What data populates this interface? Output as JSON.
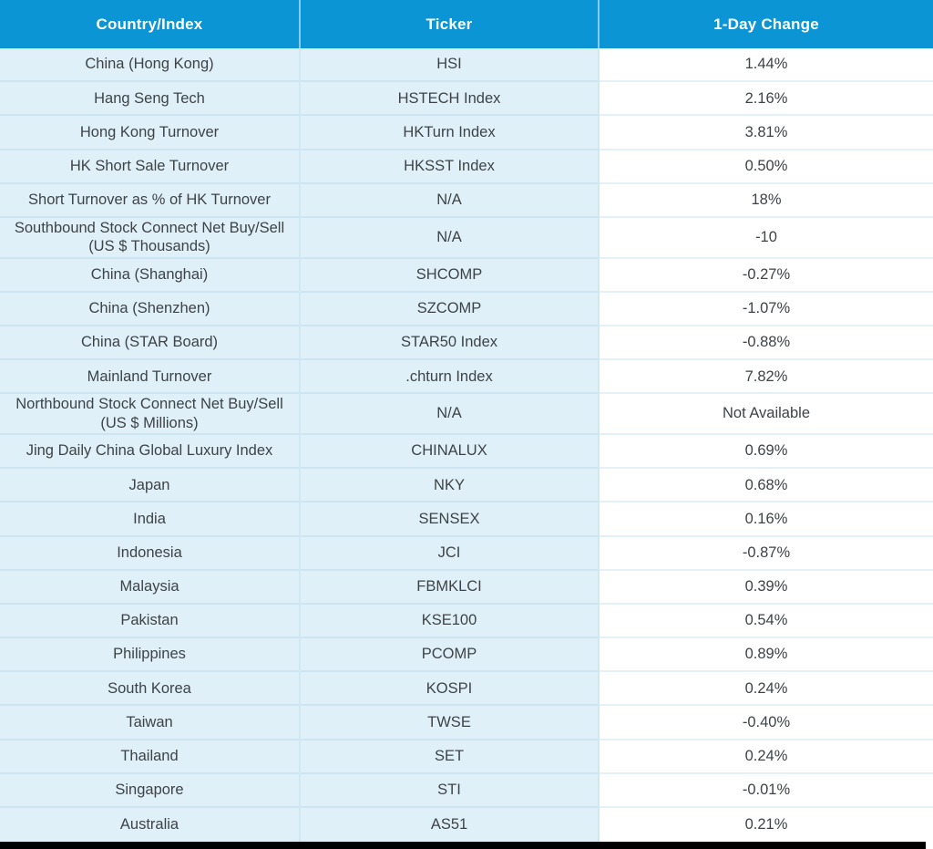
{
  "chart_data": {
    "type": "table",
    "columns": [
      "Country/Index",
      "Ticker",
      "1-Day Change"
    ],
    "rows": [
      [
        "China (Hong Kong)",
        "HSI",
        "1.44%"
      ],
      [
        "Hang Seng Tech",
        "HSTECH Index",
        "2.16%"
      ],
      [
        "Hong Kong Turnover",
        "HKTurn Index",
        "3.81%"
      ],
      [
        "HK Short Sale Turnover",
        "HKSST Index",
        "0.50%"
      ],
      [
        "Short Turnover as % of HK Turnover",
        "N/A",
        "18%"
      ],
      [
        "Southbound Stock Connect Net Buy/Sell (US $ Thousands)",
        "N/A",
        "-10"
      ],
      [
        "China (Shanghai)",
        "SHCOMP",
        "-0.27%"
      ],
      [
        "China (Shenzhen)",
        "SZCOMP",
        "-1.07%"
      ],
      [
        "China (STAR Board)",
        "STAR50 Index",
        "-0.88%"
      ],
      [
        "Mainland Turnover",
        ".chturn Index",
        "7.82%"
      ],
      [
        "Northbound Stock Connect Net Buy/Sell (US $ Millions)",
        "N/A",
        "Not Available"
      ],
      [
        "Jing Daily China Global Luxury Index",
        "CHINALUX",
        "0.69%"
      ],
      [
        "Japan",
        "NKY",
        "0.68%"
      ],
      [
        "India",
        "SENSEX",
        "0.16%"
      ],
      [
        "Indonesia",
        "JCI",
        "-0.87%"
      ],
      [
        "Malaysia",
        "FBMKLCI",
        "0.39%"
      ],
      [
        "Pakistan",
        "KSE100",
        "0.54%"
      ],
      [
        "Philippines",
        "PCOMP",
        "0.89%"
      ],
      [
        "South Korea",
        "KOSPI",
        "0.24%"
      ],
      [
        "Taiwan",
        "TWSE",
        "-0.40%"
      ],
      [
        "Thailand",
        "SET",
        "0.24%"
      ],
      [
        "Singapore",
        "STI",
        "-0.01%"
      ],
      [
        "Australia",
        "AS51",
        "0.21%"
      ]
    ]
  },
  "colors": {
    "header_bg": "#0b95d4",
    "header_text": "#ffffff",
    "row_blue_bg": "#dff0f8",
    "row_white_bg": "#ffffff",
    "divider_blue": "#cbe6f2",
    "divider_light": "#e4f1f9",
    "column_divider_blue": "#cfe9f4",
    "body_text": "#3e4347",
    "bottom_bar": "#000000"
  }
}
